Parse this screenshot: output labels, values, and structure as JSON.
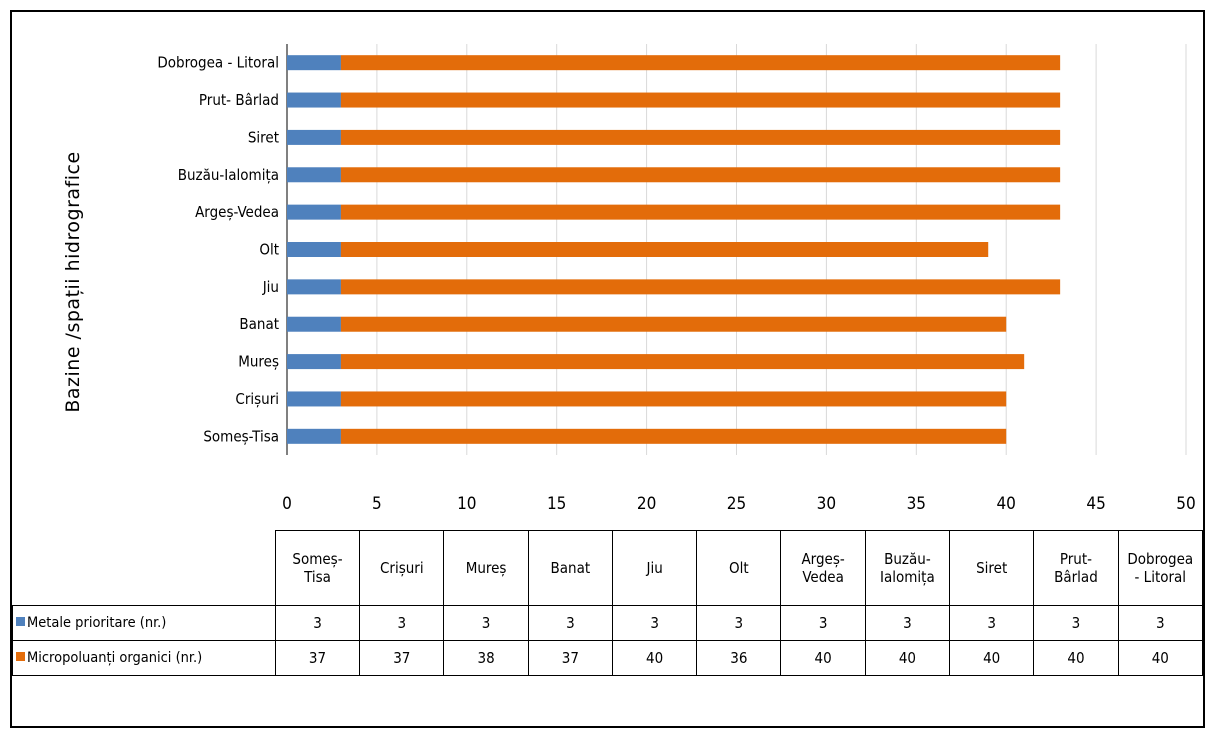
{
  "chart_data": {
    "type": "bar",
    "orientation": "horizontal",
    "stacked": true,
    "ylabel": "Bazine /spații hidrografice",
    "xlim": [
      0,
      50
    ],
    "xticks": [
      0,
      5,
      10,
      15,
      20,
      25,
      30,
      35,
      40,
      45,
      50
    ],
    "grid": true,
    "legend": "data-table",
    "categories": [
      "Someș-Tisa",
      "Crișuri",
      "Mureș",
      "Banat",
      "Jiu",
      "Olt",
      "Argeș-Vedea",
      "Buzău-Ialomița",
      "Siret",
      "Prut- Bârlad",
      "Dobrogea - Litoral"
    ],
    "series": [
      {
        "name": "Metale prioritare (nr.)",
        "color": "#4f81bd",
        "values": [
          3,
          3,
          3,
          3,
          3,
          3,
          3,
          3,
          3,
          3,
          3
        ]
      },
      {
        "name": "Micropoluanți organici (nr.)",
        "color": "#e36c0a",
        "values": [
          37,
          37,
          38,
          37,
          40,
          36,
          40,
          40,
          40,
          40,
          40
        ]
      }
    ]
  },
  "table": {
    "headers": [
      [
        "Someș-",
        "Tisa"
      ],
      [
        "Crișuri"
      ],
      [
        "Mureș"
      ],
      [
        "Banat"
      ],
      [
        "Jiu"
      ],
      [
        "Olt"
      ],
      [
        "Argeș-",
        "Vedea"
      ],
      [
        "Buzău-",
        "Ialomița"
      ],
      [
        "Siret"
      ],
      [
        "Prut-",
        "Bârlad"
      ],
      [
        "Dobrogea",
        "- Litoral"
      ]
    ],
    "rows": [
      {
        "label": "Metale prioritare (nr.)",
        "color": "#4f81bd",
        "values": [
          "3",
          "3",
          "3",
          "3",
          "3",
          "3",
          "3",
          "3",
          "3",
          "3",
          "3"
        ]
      },
      {
        "label": "Micropoluanți organici (nr.)",
        "color": "#e36c0a",
        "values": [
          "37",
          "37",
          "38",
          "37",
          "40",
          "36",
          "40",
          "40",
          "40",
          "40",
          "40"
        ]
      }
    ]
  }
}
